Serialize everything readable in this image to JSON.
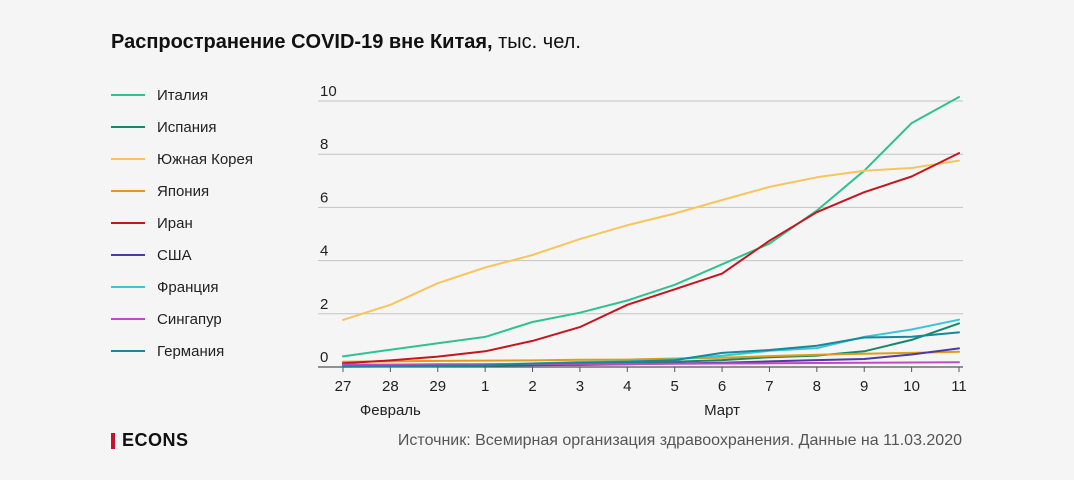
{
  "header": {
    "title_bold": "Распространение COVID-19 вне Китая,",
    "title_unit": " тыс. чел."
  },
  "footer": {
    "logo_text": "ECONS",
    "logo_color": "#c8102e",
    "source": "Источник: Всемирная организация здравоохранения. Данные на 11.03.2020"
  },
  "chart_data": {
    "type": "line",
    "categories": [
      "27",
      "28",
      "29",
      "1",
      "2",
      "3",
      "4",
      "5",
      "6",
      "7",
      "8",
      "9",
      "10",
      "11"
    ],
    "month_labels": [
      {
        "label": "Февраль",
        "at_index": 1
      },
      {
        "label": "Март",
        "at_index": 8
      }
    ],
    "ylim": [
      0,
      10
    ],
    "yticks": [
      0,
      2,
      4,
      6,
      8,
      10
    ],
    "grid": true,
    "legend_position": "left",
    "series": [
      {
        "name": "Италия",
        "color": "#2fc28f",
        "values": [
          0.4,
          0.65,
          0.89,
          1.13,
          1.69,
          2.04,
          2.5,
          3.09,
          3.86,
          4.64,
          5.88,
          7.38,
          9.17,
          10.15
        ]
      },
      {
        "name": "Испания",
        "color": "#128a66",
        "values": [
          0.01,
          0.02,
          0.03,
          0.05,
          0.07,
          0.12,
          0.15,
          0.2,
          0.26,
          0.37,
          0.43,
          0.59,
          1.02,
          1.64
        ]
      },
      {
        "name": "Южная Корея",
        "color": "#f7c55c",
        "values": [
          1.77,
          2.34,
          3.15,
          3.74,
          4.21,
          4.81,
          5.33,
          5.77,
          6.28,
          6.77,
          7.13,
          7.38,
          7.48,
          7.76
        ]
      },
      {
        "name": "Япония",
        "color": "#e09c14",
        "values": [
          0.2,
          0.21,
          0.23,
          0.24,
          0.25,
          0.27,
          0.28,
          0.32,
          0.35,
          0.41,
          0.46,
          0.5,
          0.53,
          0.57
        ]
      },
      {
        "name": "Иран",
        "color": "#c5161d",
        "values": [
          0.14,
          0.25,
          0.39,
          0.59,
          0.98,
          1.5,
          2.34,
          2.92,
          3.51,
          4.75,
          5.82,
          6.57,
          7.16,
          8.04
        ]
      },
      {
        "name": "США",
        "color": "#4a3ba8",
        "values": [
          0.06,
          0.06,
          0.06,
          0.07,
          0.07,
          0.08,
          0.1,
          0.13,
          0.16,
          0.21,
          0.26,
          0.3,
          0.47,
          0.7
        ]
      },
      {
        "name": "Франция",
        "color": "#3cc6d3",
        "values": [
          0.02,
          0.04,
          0.06,
          0.1,
          0.13,
          0.19,
          0.21,
          0.29,
          0.42,
          0.61,
          0.71,
          1.13,
          1.41,
          1.78
        ]
      },
      {
        "name": "Сингапур",
        "color": "#c04bc0",
        "values": [
          0.09,
          0.09,
          0.1,
          0.1,
          0.1,
          0.11,
          0.11,
          0.12,
          0.13,
          0.14,
          0.15,
          0.16,
          0.17,
          0.18
        ]
      },
      {
        "name": "Германия",
        "color": "#17889a",
        "values": [
          0.02,
          0.03,
          0.05,
          0.06,
          0.13,
          0.16,
          0.2,
          0.26,
          0.53,
          0.64,
          0.8,
          1.11,
          1.14,
          1.3
        ]
      }
    ]
  }
}
